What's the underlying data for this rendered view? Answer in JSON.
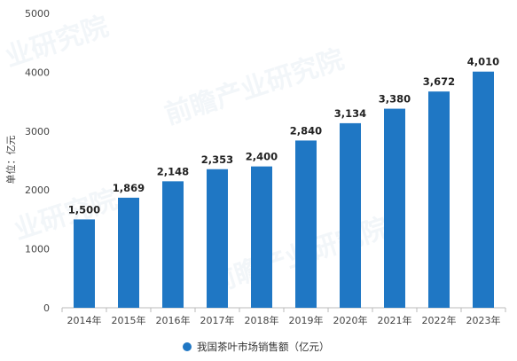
{
  "chart_data": {
    "type": "bar",
    "categories": [
      "2014年",
      "2015年",
      "2016年",
      "2017年",
      "2018年",
      "2019年",
      "2020年",
      "2021年",
      "2022年",
      "2023年"
    ],
    "series": [
      {
        "name": "我国茶叶市场销售额（亿元）",
        "values": [
          1500,
          1869,
          2148,
          2353,
          2400,
          2840,
          3134,
          3380,
          3672,
          4010
        ],
        "value_labels": [
          "1,500",
          "1,869",
          "2,148",
          "2,353",
          "2,400",
          "2,840",
          "3,134",
          "3,380",
          "3,672",
          "4,010"
        ],
        "color": "#1f77c4"
      }
    ],
    "title": "",
    "xlabel": "",
    "ylabel": "单位：亿元",
    "ylim": [
      0,
      5000
    ],
    "yticks": [
      0,
      1000,
      2000,
      3000,
      4000,
      5000
    ],
    "grid": false,
    "legend": "bottom-center"
  },
  "colors": {
    "bar": "#1f77c4",
    "axis": "#bbbbbb"
  }
}
